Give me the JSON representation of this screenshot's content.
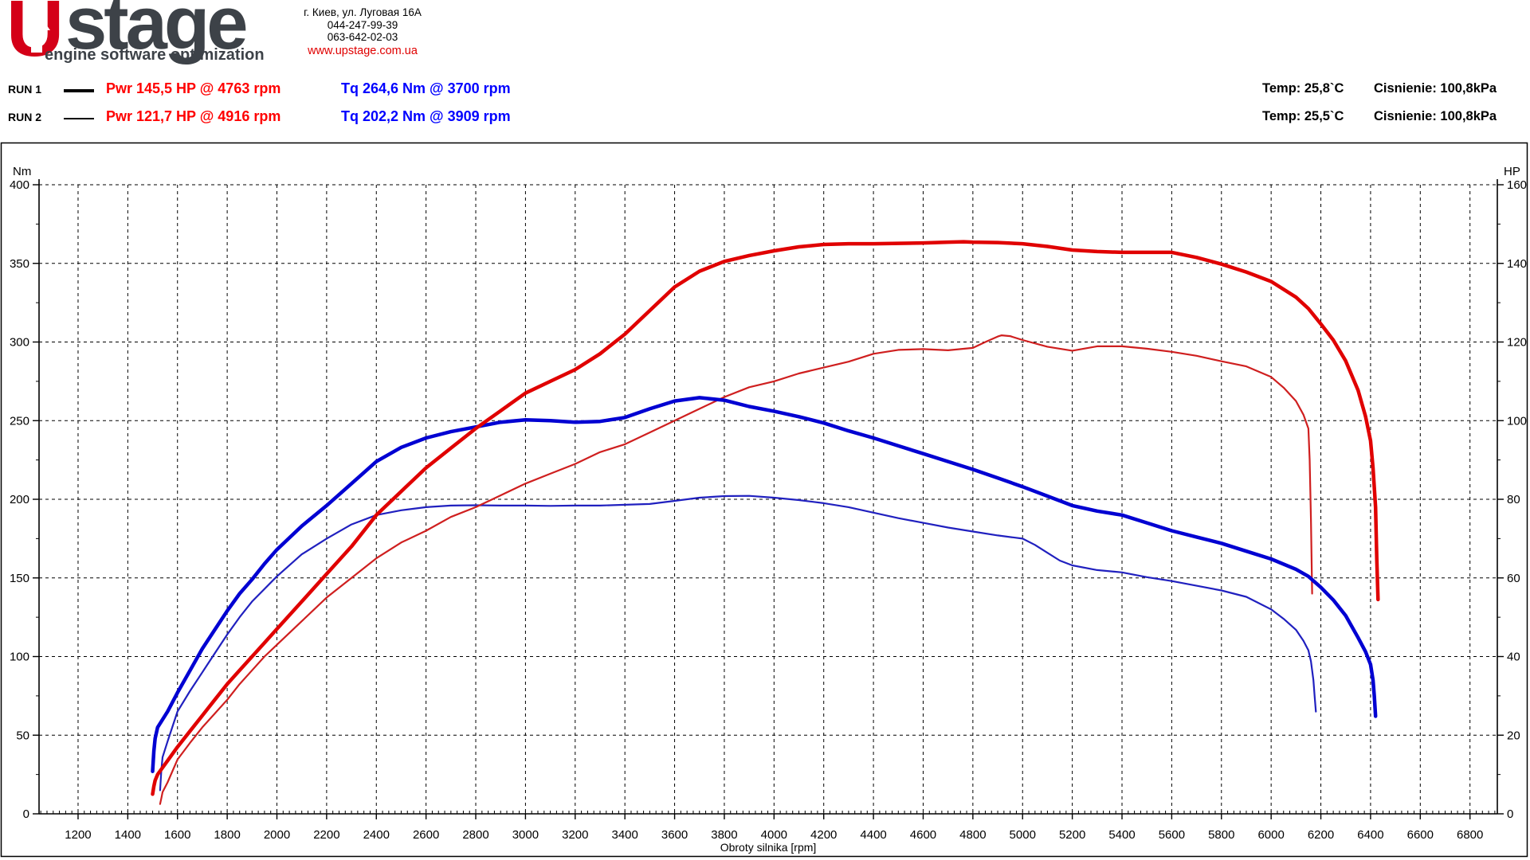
{
  "header": {
    "logo": {
      "u": "U",
      "stage": "stage",
      "tagline": "engine software optimization"
    },
    "contact": {
      "address": "г. Киев, ул. Луговая 16А",
      "phone1": "044-247-99-39",
      "phone2": "063-642-02-03",
      "website": "www.upstage.com.ua"
    },
    "runs": [
      {
        "label": "RUN 1",
        "power": "Pwr  145,5 HP @ 4763 rpm",
        "torque": "Tq 264,6 Nm @ 3700 rpm",
        "temp": "Temp: 25,8`C",
        "pressure": "Cisnienie: 100,8kPa"
      },
      {
        "label": "RUN 2",
        "power": "Pwr  121,7 HP @ 4916 rpm",
        "torque": "Tq 202,2 Nm @ 3909 rpm",
        "temp": "Temp: 25,5`C",
        "pressure": "Cisnienie: 100,8kPa"
      }
    ]
  },
  "colors": {
    "power_text": "#ff0000",
    "torque_text": "#0000ff",
    "run1_power": "#e00000",
    "run2_power": "#cf1f1f",
    "run1_torque": "#0000d2",
    "run2_torque": "#2020bf",
    "grid": "#000000",
    "logo_red": "#d40018",
    "logo_gray": "#3d4248"
  },
  "chart_data": {
    "type": "line",
    "x_axis": {
      "label": "Obroty silnika [rpm]",
      "min": 1043,
      "max": 6910,
      "tick_first": 1200,
      "tick_last": 6800,
      "tick_step": 200,
      "minor_step": 25
    },
    "y_left": {
      "label": "Nm",
      "min": 0,
      "max": 400,
      "tick_step": 50,
      "minor_step": 25
    },
    "y_right": {
      "label": "HP",
      "min": 0,
      "max": 160,
      "tick_step": 20,
      "minor_step": 10
    },
    "grid": "dashed",
    "series": [
      {
        "name": "run2-torque",
        "axis": "left",
        "color": "#2020bf",
        "width": 2.2,
        "points": [
          [
            1530,
            15
          ],
          [
            1535,
            28
          ],
          [
            1540,
            36
          ],
          [
            1560,
            46
          ],
          [
            1600,
            65
          ],
          [
            1650,
            78
          ],
          [
            1700,
            90
          ],
          [
            1750,
            102
          ],
          [
            1800,
            114
          ],
          [
            1850,
            125
          ],
          [
            1900,
            135
          ],
          [
            1950,
            143
          ],
          [
            2000,
            151
          ],
          [
            2100,
            165
          ],
          [
            2200,
            175
          ],
          [
            2300,
            184
          ],
          [
            2400,
            190
          ],
          [
            2500,
            193
          ],
          [
            2600,
            195
          ],
          [
            2700,
            196
          ],
          [
            2800,
            196.2
          ],
          [
            2900,
            196
          ],
          [
            3000,
            196
          ],
          [
            3100,
            195.8
          ],
          [
            3200,
            196
          ],
          [
            3300,
            196
          ],
          [
            3400,
            196.5
          ],
          [
            3500,
            197
          ],
          [
            3600,
            199
          ],
          [
            3700,
            201
          ],
          [
            3800,
            202
          ],
          [
            3900,
            202.2
          ],
          [
            4000,
            201
          ],
          [
            4100,
            199.5
          ],
          [
            4200,
            197.5
          ],
          [
            4300,
            195
          ],
          [
            4400,
            191.5
          ],
          [
            4500,
            188
          ],
          [
            4600,
            185
          ],
          [
            4700,
            182
          ],
          [
            4800,
            179.5
          ],
          [
            4900,
            177
          ],
          [
            5000,
            175
          ],
          [
            5050,
            171
          ],
          [
            5100,
            166
          ],
          [
            5150,
            161
          ],
          [
            5200,
            158
          ],
          [
            5300,
            155
          ],
          [
            5400,
            153.5
          ],
          [
            5500,
            150.5
          ],
          [
            5600,
            148
          ],
          [
            5700,
            145
          ],
          [
            5800,
            142
          ],
          [
            5900,
            138
          ],
          [
            6000,
            130
          ],
          [
            6050,
            124
          ],
          [
            6100,
            117
          ],
          [
            6130,
            110
          ],
          [
            6150,
            104
          ],
          [
            6160,
            97
          ],
          [
            6170,
            85
          ],
          [
            6175,
            75
          ],
          [
            6180,
            65
          ]
        ]
      },
      {
        "name": "run2-power",
        "axis": "right",
        "color": "#cf1f1f",
        "width": 2.2,
        "points": [
          [
            1530,
            2.5
          ],
          [
            1535,
            4
          ],
          [
            1540,
            5.5
          ],
          [
            1560,
            8
          ],
          [
            1600,
            13.8
          ],
          [
            1650,
            18
          ],
          [
            1700,
            22
          ],
          [
            1750,
            25.5
          ],
          [
            1800,
            29
          ],
          [
            1850,
            33
          ],
          [
            1900,
            36.5
          ],
          [
            1950,
            40
          ],
          [
            2000,
            43
          ],
          [
            2100,
            49
          ],
          [
            2200,
            55
          ],
          [
            2300,
            60
          ],
          [
            2400,
            65
          ],
          [
            2500,
            69
          ],
          [
            2600,
            72
          ],
          [
            2700,
            75.5
          ],
          [
            2800,
            78
          ],
          [
            2900,
            81
          ],
          [
            3000,
            84
          ],
          [
            3100,
            86.5
          ],
          [
            3200,
            89
          ],
          [
            3300,
            92
          ],
          [
            3400,
            94
          ],
          [
            3500,
            97
          ],
          [
            3600,
            100
          ],
          [
            3700,
            103
          ],
          [
            3800,
            106
          ],
          [
            3900,
            108.5
          ],
          [
            4000,
            110
          ],
          [
            4100,
            112
          ],
          [
            4200,
            113.5
          ],
          [
            4300,
            115
          ],
          [
            4400,
            117
          ],
          [
            4500,
            118
          ],
          [
            4600,
            118.2
          ],
          [
            4700,
            117.9
          ],
          [
            4800,
            118.5
          ],
          [
            4850,
            120
          ],
          [
            4900,
            121.4
          ],
          [
            4916,
            121.7
          ],
          [
            4950,
            121.5
          ],
          [
            5000,
            120.5
          ],
          [
            5100,
            118.8
          ],
          [
            5200,
            117.8
          ],
          [
            5300,
            118.9
          ],
          [
            5400,
            118.9
          ],
          [
            5500,
            118.3
          ],
          [
            5600,
            117.5
          ],
          [
            5700,
            116.5
          ],
          [
            5800,
            115.1
          ],
          [
            5900,
            113.8
          ],
          [
            6000,
            111.1
          ],
          [
            6050,
            108.4
          ],
          [
            6100,
            105
          ],
          [
            6130,
            101.5
          ],
          [
            6150,
            98
          ],
          [
            6155,
            90
          ],
          [
            6160,
            75
          ],
          [
            6165,
            56
          ]
        ]
      },
      {
        "name": "run1-torque",
        "axis": "left",
        "color": "#0000d2",
        "width": 4.5,
        "points": [
          [
            1500,
            27
          ],
          [
            1505,
            40
          ],
          [
            1510,
            48
          ],
          [
            1520,
            55
          ],
          [
            1560,
            65
          ],
          [
            1600,
            77
          ],
          [
            1650,
            91
          ],
          [
            1700,
            105
          ],
          [
            1750,
            117
          ],
          [
            1800,
            129
          ],
          [
            1850,
            140
          ],
          [
            1900,
            149
          ],
          [
            1950,
            159
          ],
          [
            2000,
            168
          ],
          [
            2100,
            183
          ],
          [
            2200,
            196
          ],
          [
            2300,
            210
          ],
          [
            2400,
            224
          ],
          [
            2500,
            233
          ],
          [
            2600,
            239
          ],
          [
            2700,
            243
          ],
          [
            2800,
            246
          ],
          [
            2900,
            249
          ],
          [
            3000,
            250.5
          ],
          [
            3100,
            250
          ],
          [
            3200,
            249
          ],
          [
            3300,
            249.5
          ],
          [
            3400,
            252
          ],
          [
            3500,
            257.5
          ],
          [
            3600,
            262.5
          ],
          [
            3700,
            264.6
          ],
          [
            3800,
            263
          ],
          [
            3900,
            259
          ],
          [
            4000,
            256
          ],
          [
            4100,
            252.5
          ],
          [
            4200,
            248.5
          ],
          [
            4300,
            243.5
          ],
          [
            4400,
            239
          ],
          [
            4500,
            234
          ],
          [
            4600,
            229
          ],
          [
            4700,
            224
          ],
          [
            4800,
            219
          ],
          [
            4900,
            213.5
          ],
          [
            5000,
            208
          ],
          [
            5100,
            202
          ],
          [
            5200,
            196
          ],
          [
            5300,
            192.5
          ],
          [
            5400,
            190
          ],
          [
            5500,
            185
          ],
          [
            5600,
            180
          ],
          [
            5700,
            176
          ],
          [
            5800,
            172
          ],
          [
            5900,
            167
          ],
          [
            6000,
            162
          ],
          [
            6100,
            155.5
          ],
          [
            6150,
            151
          ],
          [
            6200,
            144
          ],
          [
            6250,
            136
          ],
          [
            6300,
            126
          ],
          [
            6350,
            112
          ],
          [
            6380,
            103
          ],
          [
            6400,
            95
          ],
          [
            6410,
            85
          ],
          [
            6415,
            75
          ],
          [
            6420,
            62
          ]
        ]
      },
      {
        "name": "run1-power",
        "axis": "right",
        "color": "#e00000",
        "width": 4.5,
        "points": [
          [
            1500,
            5
          ],
          [
            1505,
            7
          ],
          [
            1510,
            8.5
          ],
          [
            1520,
            10
          ],
          [
            1560,
            13.5
          ],
          [
            1600,
            17
          ],
          [
            1650,
            21
          ],
          [
            1700,
            25
          ],
          [
            1750,
            29
          ],
          [
            1800,
            33
          ],
          [
            1850,
            36.5
          ],
          [
            1900,
            40
          ],
          [
            1950,
            43.5
          ],
          [
            2000,
            47
          ],
          [
            2100,
            54
          ],
          [
            2200,
            61
          ],
          [
            2300,
            68
          ],
          [
            2400,
            76
          ],
          [
            2500,
            82
          ],
          [
            2600,
            88
          ],
          [
            2700,
            93
          ],
          [
            2800,
            98
          ],
          [
            2900,
            102.5
          ],
          [
            3000,
            107
          ],
          [
            3100,
            110
          ],
          [
            3200,
            113
          ],
          [
            3300,
            117
          ],
          [
            3400,
            122
          ],
          [
            3500,
            128
          ],
          [
            3600,
            134
          ],
          [
            3700,
            138
          ],
          [
            3800,
            140.5
          ],
          [
            3900,
            142
          ],
          [
            4000,
            143.2
          ],
          [
            4100,
            144.2
          ],
          [
            4200,
            144.8
          ],
          [
            4300,
            145
          ],
          [
            4400,
            145
          ],
          [
            4500,
            145.1
          ],
          [
            4600,
            145.2
          ],
          [
            4700,
            145.4
          ],
          [
            4763,
            145.5
          ],
          [
            4800,
            145.4
          ],
          [
            4900,
            145.3
          ],
          [
            5000,
            145
          ],
          [
            5100,
            144.3
          ],
          [
            5200,
            143.4
          ],
          [
            5300,
            143
          ],
          [
            5400,
            142.8
          ],
          [
            5500,
            142.8
          ],
          [
            5600,
            142.8
          ],
          [
            5700,
            141.5
          ],
          [
            5800,
            139.8
          ],
          [
            5900,
            137.8
          ],
          [
            6000,
            135.4
          ],
          [
            6100,
            131.4
          ],
          [
            6150,
            128.5
          ],
          [
            6200,
            124.6
          ],
          [
            6250,
            120.5
          ],
          [
            6300,
            115.2
          ],
          [
            6350,
            107.7
          ],
          [
            6380,
            101
          ],
          [
            6400,
            94.9
          ],
          [
            6410,
            88
          ],
          [
            6420,
            78
          ],
          [
            6425,
            65
          ],
          [
            6430,
            54.5
          ]
        ]
      }
    ]
  }
}
